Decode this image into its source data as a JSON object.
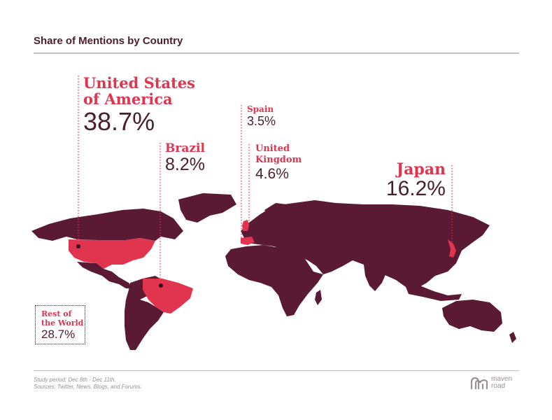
{
  "header": {
    "title": "Share of Mentions by Country"
  },
  "callouts": {
    "usa": {
      "name": "United States of America",
      "share": "38.7%"
    },
    "brazil": {
      "name": "Brazil",
      "share": "8.2%"
    },
    "spain": {
      "name": "Spain",
      "share": "3.5%"
    },
    "uk": {
      "name": "United Kingdom",
      "share": "4.6%"
    },
    "japan": {
      "name": "Japan",
      "share": "16.2%"
    },
    "rest": {
      "name": "Rest of the World",
      "share": "28.7%"
    }
  },
  "footer": {
    "study_period": "Study period: Dec 8th - Dec 11th.",
    "sources": "Sources: Twitter, News, Blogs, and Forums.",
    "logo_text": "maven road",
    "logo_icon": "maven-road-logo-icon"
  },
  "colors": {
    "land": "#5a1a33",
    "highlight": "#e0344f",
    "text": "#4a1e2f",
    "muted": "#9a8f94"
  }
}
